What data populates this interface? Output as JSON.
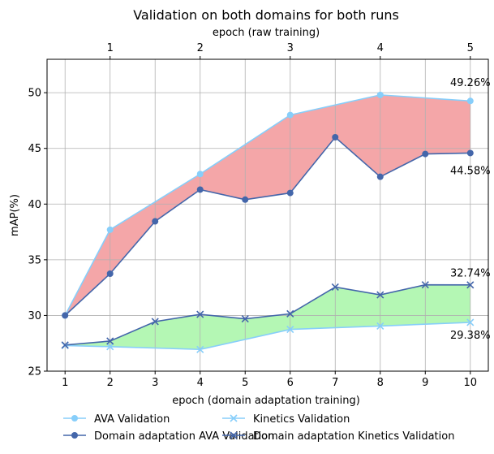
{
  "chart_data": {
    "type": "line",
    "title": "Validation on both domains for both runs",
    "xlabel": "epoch (domain adaptation training)",
    "xlabel_top": "epoch (raw training)",
    "ylabel": "mAP(%)",
    "xlim": [
      0.6,
      10.4
    ],
    "ylim": [
      25,
      53
    ],
    "x_ticks": [
      1,
      2,
      3,
      4,
      5,
      6,
      7,
      8,
      9,
      10
    ],
    "y_ticks": [
      25,
      30,
      35,
      40,
      45,
      50
    ],
    "top_ticks": [
      {
        "label": "1",
        "x": 2
      },
      {
        "label": "2",
        "x": 4
      },
      {
        "label": "3",
        "x": 6
      },
      {
        "label": "4",
        "x": 8
      },
      {
        "label": "5",
        "x": 10
      }
    ],
    "grid": true,
    "legend_position": "bottom, below plot, 2 columns",
    "series": [
      {
        "name": "AVA Validation",
        "marker": "o",
        "color": "#87cefa",
        "x": [
          1,
          2,
          4,
          6,
          8,
          10
        ],
        "y": [
          30.0,
          37.7,
          42.7,
          48.0,
          49.8,
          49.26
        ]
      },
      {
        "name": "Kinetics Validation",
        "marker": "x",
        "color": "#87cefa",
        "x": [
          1,
          2,
          4,
          6,
          8,
          10
        ],
        "y": [
          27.3,
          27.2,
          26.95,
          28.75,
          29.05,
          29.38
        ]
      },
      {
        "name": "Domain adaptation AVA Validation",
        "marker": "o",
        "color": "#4466aa",
        "x": [
          1,
          2,
          3,
          4,
          5,
          6,
          7,
          8,
          9,
          10
        ],
        "y": [
          30.0,
          33.75,
          38.45,
          41.3,
          40.4,
          41.0,
          46.0,
          42.45,
          44.5,
          44.58
        ]
      },
      {
        "name": "Domain adaptation Kinetics Validation",
        "marker": "x",
        "color": "#4466aa",
        "x": [
          1,
          2,
          3,
          4,
          5,
          6,
          7,
          8,
          9,
          10
        ],
        "y": [
          27.35,
          27.7,
          29.45,
          30.1,
          29.7,
          30.15,
          32.55,
          31.85,
          32.75,
          32.74
        ]
      }
    ],
    "fills": [
      {
        "between": [
          "AVA Validation",
          "Domain adaptation AVA Validation"
        ],
        "color": "#f4a6a8"
      },
      {
        "between": [
          "Kinetics Validation",
          "Domain adaptation Kinetics Validation"
        ],
        "color": "#b4f7b4"
      }
    ],
    "annotations": [
      {
        "text": "49.26%",
        "x": 10,
        "y": 50.6
      },
      {
        "text": "44.58%",
        "x": 10,
        "y": 42.7
      },
      {
        "text": "32.74%",
        "x": 10,
        "y": 33.5
      },
      {
        "text": "29.38%",
        "x": 10,
        "y": 27.9
      }
    ]
  }
}
